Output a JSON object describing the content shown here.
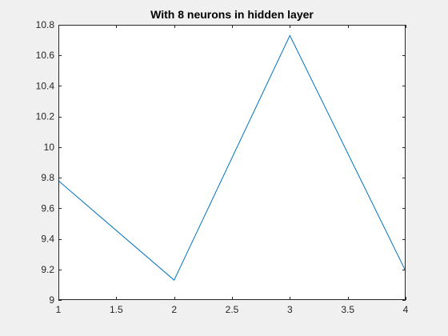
{
  "chart_data": {
    "type": "line",
    "title": "With 8 neurons in hidden layer",
    "xlabel": "",
    "ylabel": "",
    "xlim": [
      1,
      4
    ],
    "ylim": [
      9,
      10.8
    ],
    "xticks": [
      1,
      1.5,
      2,
      2.5,
      3,
      3.5,
      4
    ],
    "xtick_labels": [
      "1",
      "1.5",
      "2",
      "2.5",
      "3",
      "3.5",
      "4"
    ],
    "yticks": [
      9,
      9.2,
      9.4,
      9.6,
      9.8,
      10,
      10.2,
      10.4,
      10.6,
      10.8
    ],
    "ytick_labels": [
      "9",
      "9.2",
      "9.4",
      "9.6",
      "9.8",
      "10",
      "10.2",
      "10.4",
      "10.6",
      "10.8"
    ],
    "grid": false,
    "series": [
      {
        "x": [
          1,
          2,
          3,
          4
        ],
        "y": [
          9.78,
          9.13,
          10.73,
          9.19
        ]
      }
    ],
    "colors": {
      "line": "#0072bd",
      "axes": "#262626",
      "plot_bg": "#ffffff",
      "figure_bg": "#f0f0f0"
    }
  }
}
